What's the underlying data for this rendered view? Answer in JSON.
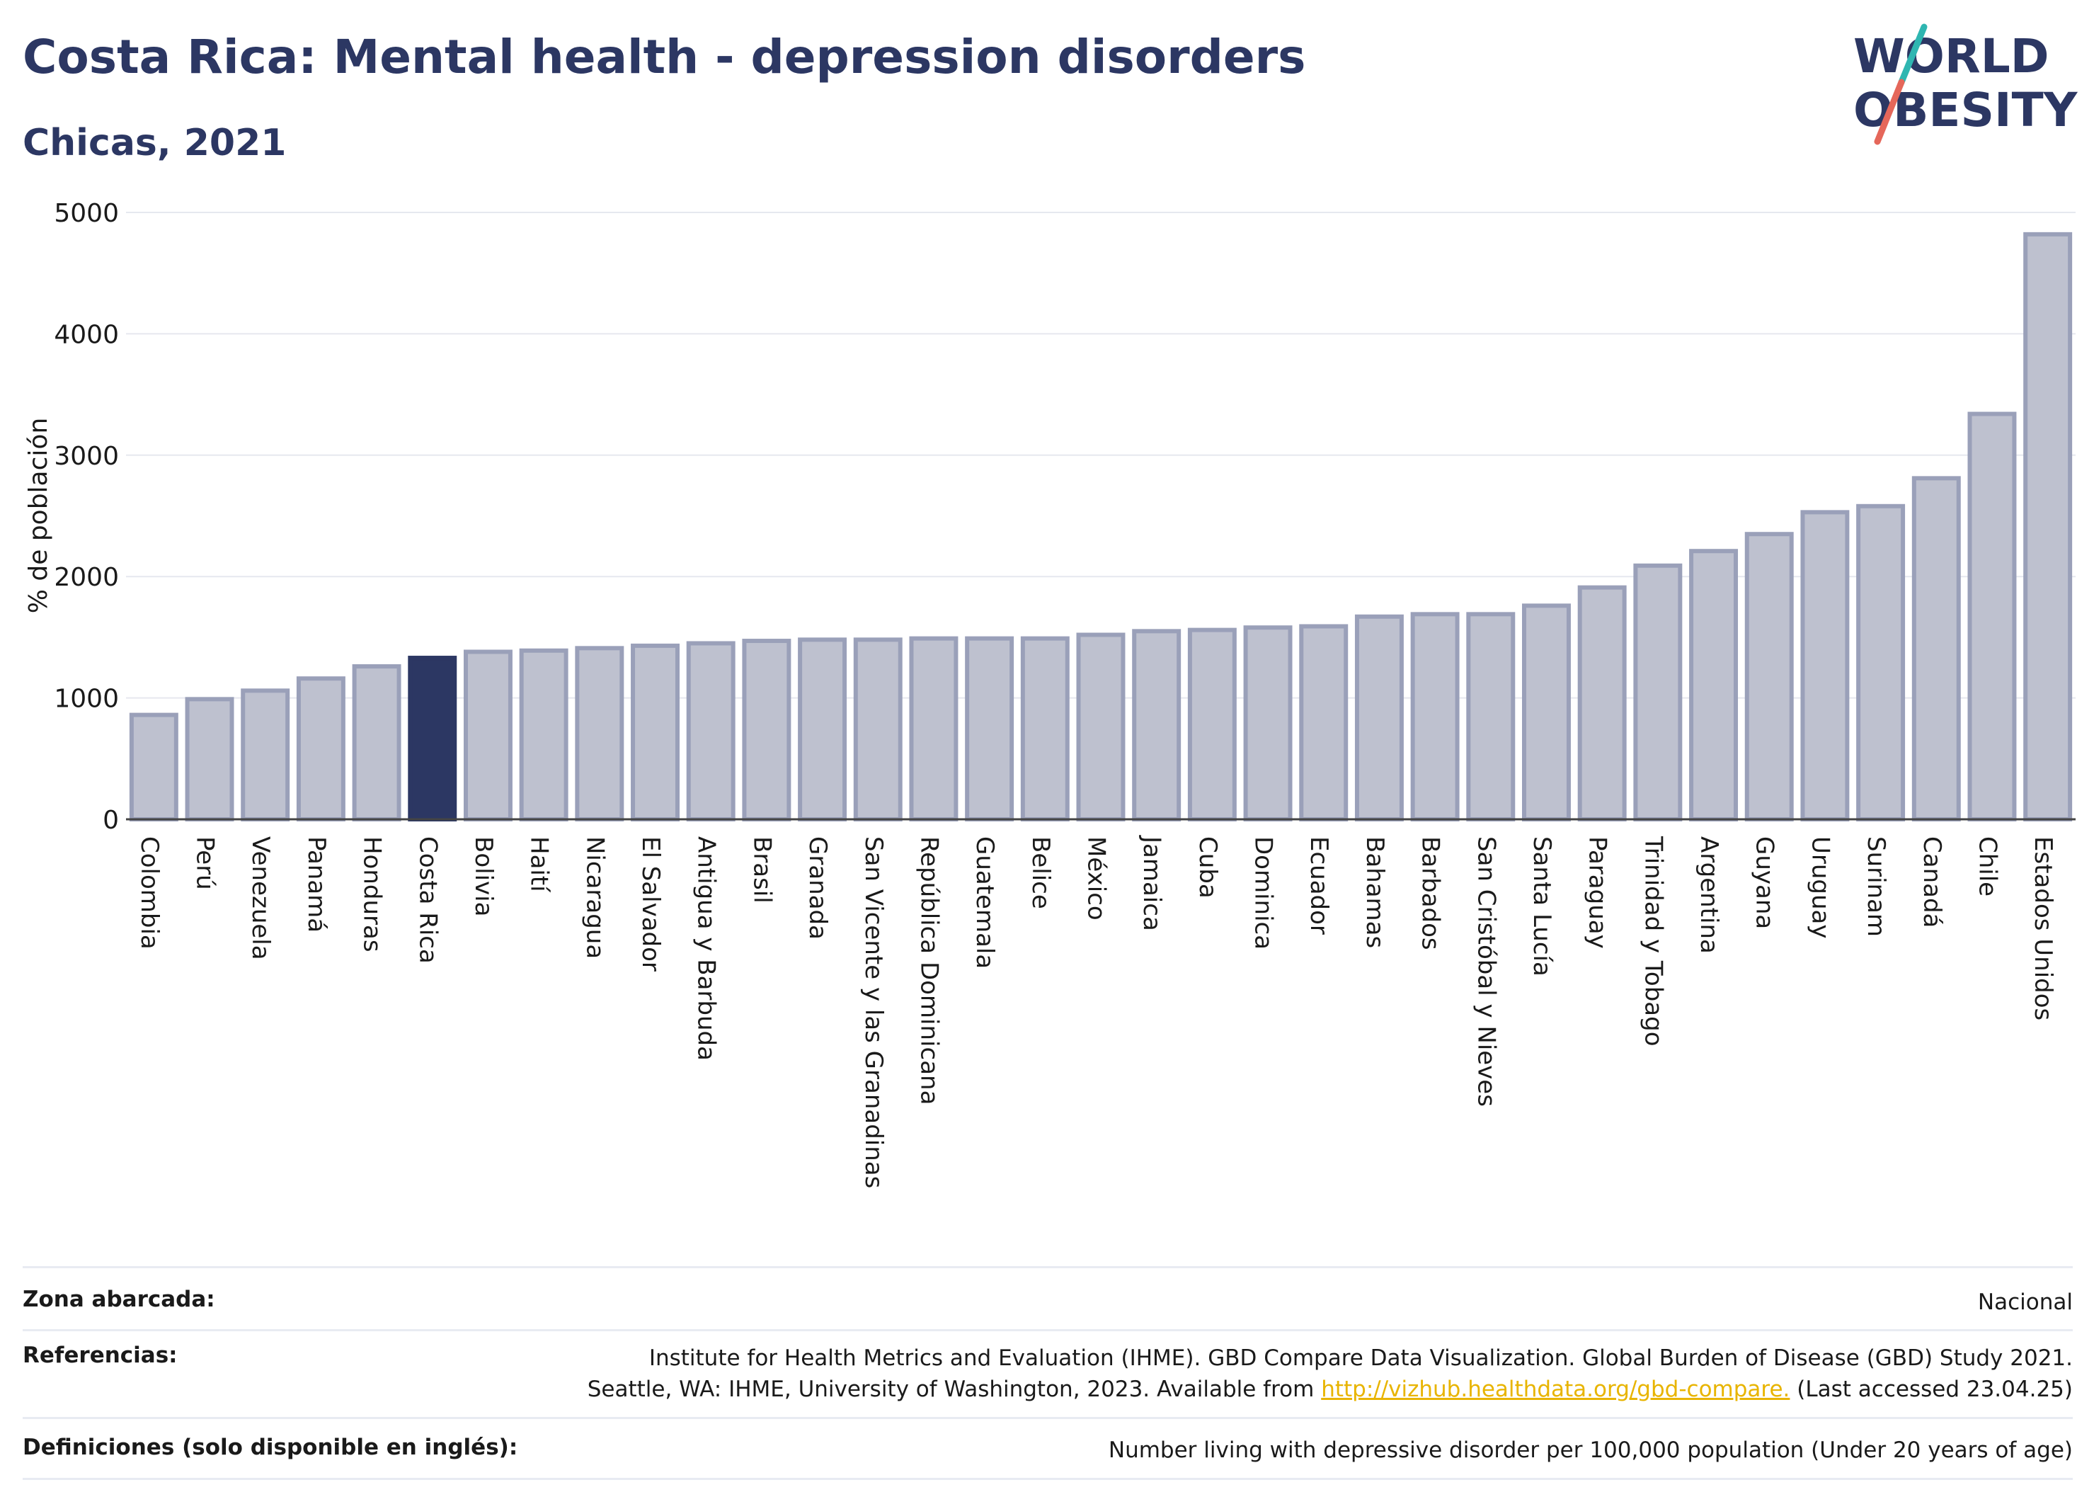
{
  "header": {
    "title": "Costa Rica: Mental health - depression disorders",
    "subtitle": "Chicas, 2021",
    "logo_line1": "WORLD",
    "logo_line2": "OBESITY"
  },
  "colors": {
    "title": "#2c3763",
    "highlight_bar": "#2c3763",
    "bar_fill": "#bec1cf",
    "bar_stroke": "#9aa0b9",
    "grid": "#e6e8ef",
    "link": "#e8b400",
    "logo_teal": "#2fb6b1",
    "logo_red": "#e5675a"
  },
  "chart_data": {
    "type": "bar",
    "ylabel": "% de población",
    "ylim": [
      0,
      5000
    ],
    "yticks": [
      0,
      1000,
      2000,
      3000,
      4000,
      5000
    ],
    "grid": true,
    "highlight": "Costa Rica",
    "categories": [
      "Colombia",
      "Perú",
      "Venezuela",
      "Panamá",
      "Honduras",
      "Costa Rica",
      "Bolivia",
      "Haití",
      "Nicaragua",
      "El Salvador",
      "Antigua y Barbuda",
      "Brasil",
      "Granada",
      "San Vicente y las Granadinas",
      "República Dominicana",
      "Guatemala",
      "Belice",
      "México",
      "Jamaica",
      "Cuba",
      "Dominica",
      "Ecuador",
      "Bahamas",
      "Barbados",
      "San Cristóbal y Nieves",
      "Santa Lucía",
      "Paraguay",
      "Trinidad y Tobago",
      "Argentina",
      "Guyana",
      "Uruguay",
      "Surinam",
      "Canadá",
      "Chile",
      "Estados Unidos"
    ],
    "values": [
      860,
      990,
      1060,
      1160,
      1260,
      1330,
      1380,
      1390,
      1410,
      1430,
      1450,
      1470,
      1480,
      1480,
      1490,
      1490,
      1490,
      1520,
      1550,
      1560,
      1580,
      1590,
      1670,
      1690,
      1690,
      1760,
      1910,
      2090,
      2210,
      2350,
      2530,
      2580,
      2810,
      3340,
      4820
    ]
  },
  "footer": {
    "rows": [
      {
        "label": "Zona abarcada:",
        "lines": [
          "Nacional"
        ]
      },
      {
        "label": "Referencias:",
        "lines": [
          "Institute for Health Metrics and Evaluation (IHME). GBD Compare Data Visualization. Global Burden of Disease (GBD) Study 2021."
        ],
        "line2_pre": "Seattle, WA: IHME, University of Washington, 2023. Available from ",
        "link": "http://vizhub.healthdata.org/gbd-compare.",
        "line2_post": " (Last accessed 23.04.25)"
      },
      {
        "label": "Definiciones (solo disponible en inglés):",
        "lines": [
          "Number living with depressive disorder per 100,000 population (Under 20 years of age)"
        ]
      }
    ]
  }
}
